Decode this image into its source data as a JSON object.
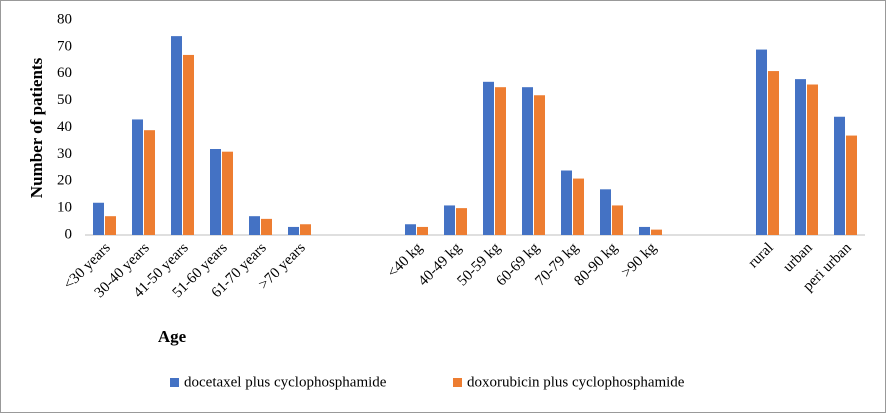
{
  "chart_data": {
    "type": "bar",
    "ylabel": "Number of patients",
    "xlabel": "Age",
    "categories": [
      "<30 years",
      "30-40 years",
      "41-50 years",
      "51-60 years",
      "61-70 years",
      ">70 years",
      null,
      null,
      "<40 kg",
      "40-49 kg",
      "50-59 kg",
      "60-69 kg",
      "70-79 kg",
      "80-90 kg",
      ">90 kg",
      null,
      null,
      "rural",
      "urban",
      "peri urban"
    ],
    "series": [
      {
        "name": "docetaxel plus cyclophosphamide",
        "color": "#4472c4",
        "values": [
          12,
          43,
          74,
          32,
          7,
          3,
          null,
          null,
          4,
          11,
          57,
          55,
          24,
          17,
          3,
          null,
          null,
          69,
          58,
          44
        ]
      },
      {
        "name": "doxorubicin plus cyclophosphamide",
        "color": "#ed7d31",
        "values": [
          7,
          39,
          67,
          31,
          6,
          4,
          null,
          null,
          3,
          10,
          55,
          52,
          21,
          11,
          2,
          null,
          null,
          61,
          56,
          37
        ]
      }
    ],
    "ylim": [
      0,
      80
    ],
    "yticks": [
      0,
      10,
      20,
      30,
      40,
      50,
      60,
      70,
      80
    ],
    "grid": false,
    "legend": "bottom"
  }
}
